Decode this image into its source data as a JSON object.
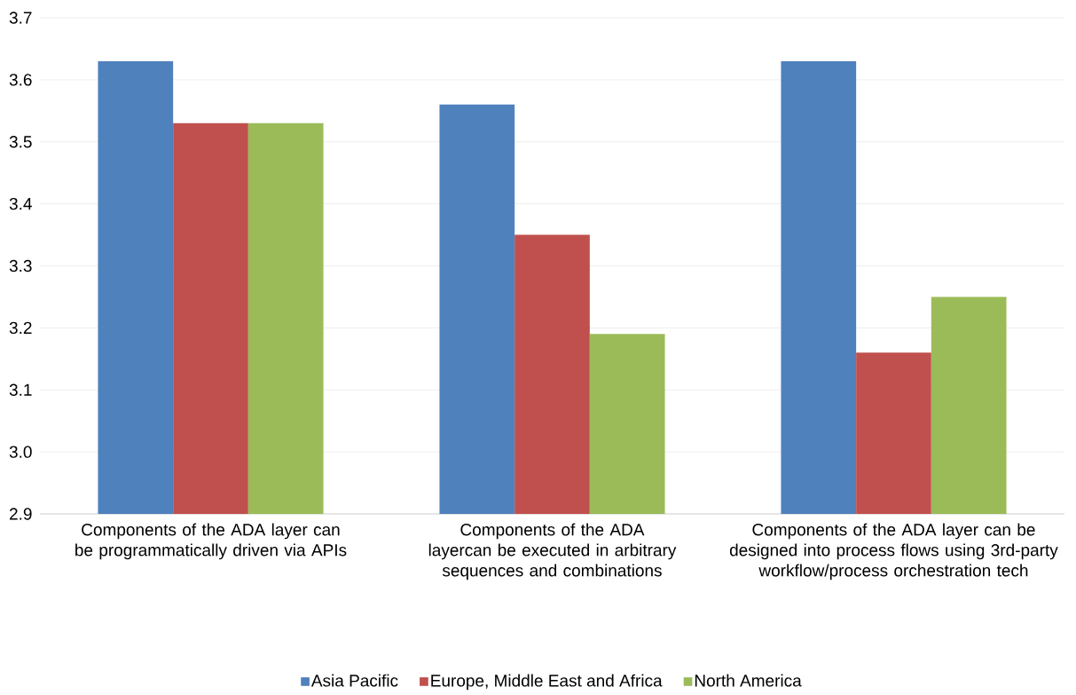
{
  "chart_data": {
    "type": "bar",
    "categories": [
      "Components of the ADA layer can be programmatically driven via APIs",
      "Components of the ADA layercan be executed in arbitrary sequences and combinations",
      "Components of the ADA layer can be designed into process flows using 3rd-party workflow/process orchestration tech"
    ],
    "series": [
      {
        "name": "Asia Pacific",
        "color": "#4f81bd",
        "values": [
          3.63,
          3.56,
          3.63
        ]
      },
      {
        "name": "Europe, Middle East and Africa",
        "color": "#c0504d",
        "values": [
          3.53,
          3.35,
          3.16
        ]
      },
      {
        "name": "North America",
        "color": "#9bbb59",
        "values": [
          3.53,
          3.19,
          3.25
        ]
      }
    ],
    "ylim": [
      2.9,
      3.7
    ],
    "yticks": [
      2.9,
      {
        "value": 3,
        "label": "3.0"
      },
      3.1,
      3.2,
      3.3,
      3.4,
      3.5,
      3.6,
      3.7
    ],
    "grid": "y",
    "legend": "bottom"
  }
}
